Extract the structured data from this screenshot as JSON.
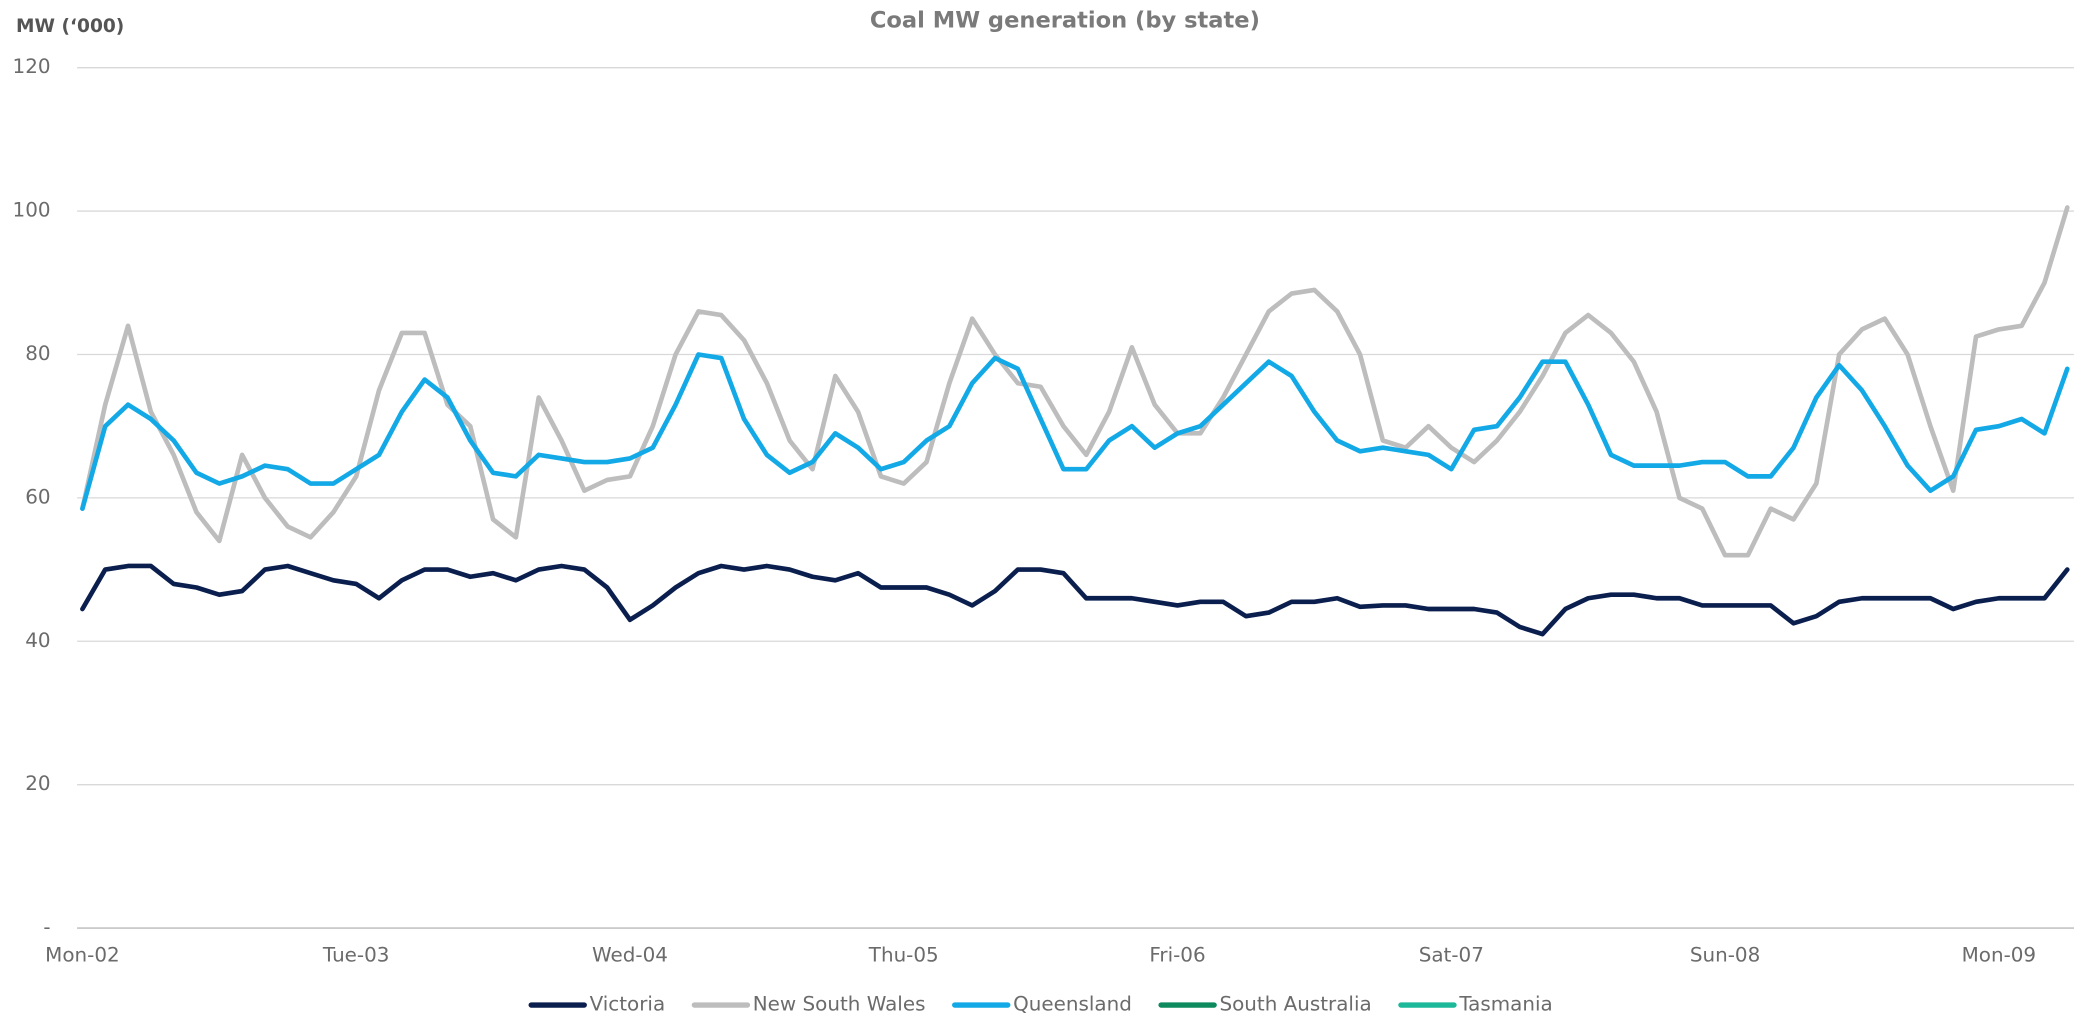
{
  "chart_data": {
    "type": "line",
    "title": "Coal MW generation (by state)",
    "y_label": "MW (‘000)",
    "categories": [
      "Mon-02",
      null,
      null,
      null,
      null,
      null,
      null,
      null,
      null,
      null,
      null,
      null,
      "Tue-03",
      null,
      null,
      null,
      null,
      null,
      null,
      null,
      null,
      null,
      null,
      null,
      "Wed-04",
      null,
      null,
      null,
      null,
      null,
      null,
      null,
      null,
      null,
      null,
      null,
      "Thu-05",
      null,
      null,
      null,
      null,
      null,
      null,
      null,
      null,
      null,
      null,
      null,
      "Fri-06",
      null,
      null,
      null,
      null,
      null,
      null,
      null,
      null,
      null,
      null,
      null,
      "Sat-07",
      null,
      null,
      null,
      null,
      null,
      null,
      null,
      null,
      null,
      null,
      null,
      "Sun-08",
      null,
      null,
      null,
      null,
      null,
      null,
      null,
      null,
      null,
      null,
      null,
      "Mon-09",
      null,
      null,
      null
    ],
    "series": [
      {
        "name": "Victoria",
        "color": "#0b1f4f",
        "values": [
          44.5,
          50,
          50.5,
          50.5,
          48,
          47.5,
          46.5,
          47,
          50,
          50.5,
          49.5,
          48.5,
          48,
          46,
          48.5,
          50,
          50,
          49,
          49.5,
          48.5,
          50,
          50.5,
          50,
          47.5,
          43,
          45,
          47.5,
          49.5,
          50.5,
          50,
          50.5,
          50,
          49,
          48.5,
          49.5,
          47.5,
          47.5,
          47.5,
          46.5,
          45,
          47,
          50,
          50,
          49.5,
          46,
          46,
          46,
          45.5,
          45,
          45.5,
          45.5,
          43.5,
          44,
          45.5,
          45.5,
          46,
          44.8,
          45,
          45,
          44.5,
          44.5,
          44.5,
          44,
          42,
          41,
          44.5,
          46,
          46.5,
          46.5,
          46,
          46,
          45,
          45,
          45,
          45,
          42.5,
          43.5,
          45.5,
          46,
          46,
          46,
          46,
          44.5,
          45.5,
          46,
          46,
          46,
          50
        ]
      },
      {
        "name": "New South Wales",
        "color": "#bdbdbd",
        "values": [
          58.5,
          73,
          84,
          72,
          66,
          58,
          54,
          66,
          60,
          56,
          54.5,
          58,
          63,
          75,
          83,
          83,
          73,
          70,
          57,
          54.5,
          74,
          68,
          61,
          62.5,
          63,
          70,
          80,
          86,
          85.5,
          82,
          76,
          68,
          64,
          77,
          72,
          63,
          62,
          65,
          76,
          85,
          80,
          76,
          75.5,
          70,
          66,
          72,
          81,
          73,
          69,
          69,
          74,
          80,
          86,
          88.5,
          89,
          86,
          80,
          68,
          67,
          70,
          67,
          65,
          68,
          72,
          77,
          83,
          85.5,
          83,
          79,
          72,
          60,
          58.5,
          52,
          52,
          58.5,
          57,
          62,
          80,
          83.5,
          85,
          80,
          70,
          61,
          82.5,
          83.5,
          84,
          90,
          100.5
        ]
      },
      {
        "name": "Queensland",
        "color": "#12a9e6",
        "values": [
          58.5,
          70,
          73,
          71,
          68,
          63.5,
          62,
          63,
          64.5,
          64,
          62,
          62,
          64,
          66,
          72,
          76.5,
          74,
          68,
          63.5,
          63,
          66,
          65.5,
          65,
          65,
          65.5,
          67,
          73,
          80,
          79.5,
          71,
          66,
          63.5,
          65,
          69,
          67,
          64,
          65,
          68,
          70,
          76,
          79.5,
          78,
          71,
          64,
          64,
          68,
          70,
          67,
          69,
          70,
          73,
          76,
          79,
          77,
          72,
          68,
          66.5,
          67,
          66.5,
          66,
          64,
          69.5,
          70,
          74,
          79,
          79,
          73,
          66,
          64.5,
          64.5,
          64.5,
          65,
          65,
          63,
          63,
          67,
          74,
          78.5,
          75,
          70,
          64.5,
          61,
          63,
          69.5,
          70,
          71,
          69,
          78
        ]
      },
      {
        "name": "South Australia",
        "color": "#0e8a5f",
        "values": [
          null,
          null,
          null,
          null,
          null,
          null,
          null,
          null,
          null,
          null,
          null,
          null,
          null,
          null,
          null,
          null,
          null,
          null,
          null,
          null,
          null,
          null,
          null,
          null,
          null,
          null,
          null,
          null,
          null,
          null,
          null,
          null,
          null,
          null,
          null,
          null,
          null,
          null,
          null,
          null,
          null,
          null,
          null,
          null,
          null,
          null,
          null,
          null,
          null,
          null,
          null,
          null,
          null,
          null,
          null,
          null,
          null,
          null,
          null,
          null,
          null,
          null,
          null,
          null,
          null,
          null,
          null,
          null,
          null,
          null,
          null,
          null,
          null,
          null,
          null,
          null,
          null,
          null,
          null,
          null,
          null,
          null,
          null,
          null,
          null,
          null,
          null,
          null
        ]
      },
      {
        "name": "Tasmania",
        "color": "#1cb89a",
        "values": [
          null,
          null,
          null,
          null,
          null,
          null,
          null,
          null,
          null,
          null,
          null,
          null,
          null,
          null,
          null,
          null,
          null,
          null,
          null,
          null,
          null,
          null,
          null,
          null,
          null,
          null,
          null,
          null,
          null,
          null,
          null,
          null,
          null,
          null,
          null,
          null,
          null,
          null,
          null,
          null,
          null,
          null,
          null,
          null,
          null,
          null,
          null,
          null,
          null,
          null,
          null,
          null,
          null,
          null,
          null,
          null,
          null,
          null,
          null,
          null,
          null,
          null,
          null,
          null,
          null,
          null,
          null,
          null,
          null,
          null,
          null,
          null,
          null,
          null,
          null,
          null,
          null,
          null,
          null,
          null,
          null,
          null,
          null,
          null,
          null,
          null,
          null,
          null
        ]
      }
    ],
    "ylim": [
      0,
      120
    ],
    "yticks": [
      {
        "value": 0,
        "label": "-"
      },
      20,
      40,
      60,
      80,
      100,
      120
    ],
    "grid": true,
    "legend": "bottom"
  }
}
